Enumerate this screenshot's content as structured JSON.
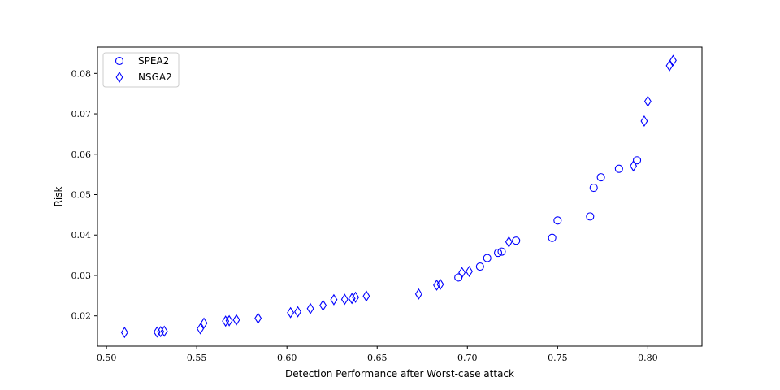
{
  "chart_data": {
    "type": "scatter",
    "title": "",
    "xlabel": "Detection Performance after Worst-case attack",
    "ylabel": "Risk",
    "xlim": [
      0.495,
      0.83
    ],
    "ylim": [
      0.0125,
      0.0865
    ],
    "xticks": [
      0.5,
      0.55,
      0.6,
      0.65,
      0.7,
      0.75,
      0.8
    ],
    "xtick_labels": [
      "0.50",
      "0.55",
      "0.60",
      "0.65",
      "0.70",
      "0.75",
      "0.80"
    ],
    "yticks": [
      0.02,
      0.03,
      0.04,
      0.05,
      0.06,
      0.07,
      0.08
    ],
    "ytick_labels": [
      "0.02",
      "0.03",
      "0.04",
      "0.05",
      "0.06",
      "0.07",
      "0.08"
    ],
    "grid": false,
    "legend_position": "top-left",
    "series": [
      {
        "name": "SPEA2",
        "marker": "circle",
        "color": "#0000ff",
        "x": [
          0.695,
          0.707,
          0.711,
          0.717,
          0.719,
          0.727,
          0.747,
          0.75,
          0.768,
          0.77,
          0.774,
          0.784,
          0.794
        ],
        "y": [
          0.0295,
          0.0322,
          0.0343,
          0.0356,
          0.0359,
          0.0386,
          0.0393,
          0.0436,
          0.0446,
          0.0517,
          0.0543,
          0.0564,
          0.0585
        ]
      },
      {
        "name": "NSGA2",
        "marker": "diamond",
        "color": "#0000ff",
        "x": [
          0.51,
          0.528,
          0.53,
          0.532,
          0.552,
          0.554,
          0.566,
          0.568,
          0.572,
          0.584,
          0.602,
          0.606,
          0.613,
          0.62,
          0.626,
          0.632,
          0.636,
          0.638,
          0.644,
          0.673,
          0.683,
          0.685,
          0.697,
          0.701,
          0.723,
          0.792,
          0.798,
          0.8,
          0.812,
          0.814
        ],
        "y": [
          0.0159,
          0.016,
          0.0161,
          0.0162,
          0.0168,
          0.0182,
          0.0187,
          0.0188,
          0.019,
          0.0194,
          0.0208,
          0.021,
          0.0218,
          0.0226,
          0.024,
          0.0241,
          0.0243,
          0.0246,
          0.0249,
          0.0254,
          0.0276,
          0.0278,
          0.0307,
          0.031,
          0.0383,
          0.0571,
          0.0682,
          0.0731,
          0.0819,
          0.0832
        ]
      }
    ]
  }
}
